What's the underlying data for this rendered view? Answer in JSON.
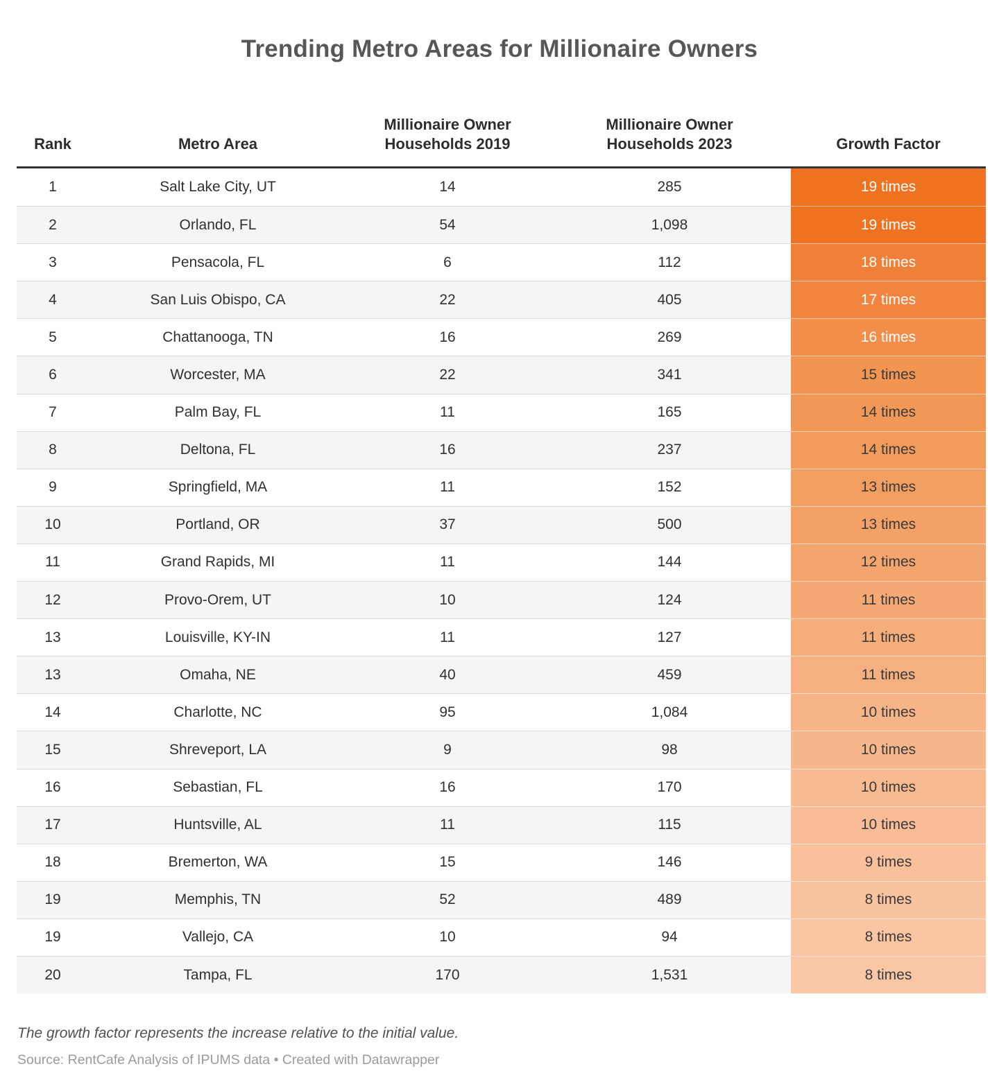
{
  "title": "Trending Metro Areas for Millionaire Owners",
  "table": {
    "headers": [
      "Rank",
      "Metro Area",
      "Millionaire Owner\nHouseholds 2019",
      "Millionaire Owner\nHouseholds 2023",
      "Growth Factor"
    ]
  },
  "chart_data": {
    "type": "table",
    "title": "Trending Metro Areas for Millionaire Owners",
    "columns": [
      "Rank",
      "Metro Area",
      "Millionaire Owner Households 2019",
      "Millionaire Owner Households 2023",
      "Growth Factor"
    ],
    "rows": [
      {
        "rank": "1",
        "metro": "Salt Lake City, UT",
        "hh2019": "14",
        "hh2023": "285",
        "growth_factor": 19,
        "growth": "19 times",
        "growth_bg": "#ee7220",
        "growth_fg": "#ffffff"
      },
      {
        "rank": "2",
        "metro": "Orlando, FL",
        "hh2019": "54",
        "hh2023": "1,098",
        "growth_factor": 19,
        "growth": "19 times",
        "growth_bg": "#ee7220",
        "growth_fg": "#ffffff"
      },
      {
        "rank": "3",
        "metro": "Pensacola, FL",
        "hh2019": "6",
        "hh2023": "112",
        "growth_factor": 18,
        "growth": "18 times",
        "growth_bg": "#f07f38",
        "growth_fg": "#ffffff"
      },
      {
        "rank": "4",
        "metro": "San Luis Obispo, CA",
        "hh2019": "22",
        "hh2023": "405",
        "growth_factor": 17,
        "growth": "17 times",
        "growth_bg": "#f1853f",
        "growth_fg": "#ffffff"
      },
      {
        "rank": "5",
        "metro": "Chattanooga, TN",
        "hh2019": "16",
        "hh2023": "269",
        "growth_factor": 16,
        "growth": "16 times",
        "growth_bg": "#f28e49",
        "growth_fg": "#ffffff"
      },
      {
        "rank": "6",
        "metro": "Worcester, MA",
        "hh2019": "22",
        "hh2023": "341",
        "growth_factor": 15,
        "growth": "15 times",
        "growth_bg": "#f29551",
        "growth_fg": "#3a3a3a"
      },
      {
        "rank": "7",
        "metro": "Palm Bay, FL",
        "hh2019": "11",
        "hh2023": "165",
        "growth_factor": 14,
        "growth": "14 times",
        "growth_bg": "#f29856",
        "growth_fg": "#3a3a3a"
      },
      {
        "rank": "8",
        "metro": "Deltona, FL",
        "hh2019": "16",
        "hh2023": "237",
        "growth_factor": 14,
        "growth": "14 times",
        "growth_bg": "#f39b5b",
        "growth_fg": "#3a3a3a"
      },
      {
        "rank": "9",
        "metro": "Springfield, MA",
        "hh2019": "11",
        "hh2023": "152",
        "growth_factor": 13,
        "growth": "13 times",
        "growth_bg": "#f39e61",
        "growth_fg": "#3a3a3a"
      },
      {
        "rank": "10",
        "metro": "Portland, OR",
        "hh2019": "37",
        "hh2023": "500",
        "growth_factor": 13,
        "growth": "13 times",
        "growth_bg": "#f4a167",
        "growth_fg": "#3a3a3a"
      },
      {
        "rank": "11",
        "metro": "Grand Rapids, MI",
        "hh2019": "11",
        "hh2023": "144",
        "growth_factor": 12,
        "growth": "12 times",
        "growth_bg": "#f4a56d",
        "growth_fg": "#3a3a3a"
      },
      {
        "rank": "12",
        "metro": "Provo-Orem, UT",
        "hh2019": "10",
        "hh2023": "124",
        "growth_factor": 11,
        "growth": "11 times",
        "growth_bg": "#f5a974",
        "growth_fg": "#3a3a3a"
      },
      {
        "rank": "13",
        "metro": "Louisville, KY-IN",
        "hh2019": "11",
        "hh2023": "127",
        "growth_factor": 11,
        "growth": "11 times",
        "growth_bg": "#f5ad7a",
        "growth_fg": "#3a3a3a"
      },
      {
        "rank": "13",
        "metro": "Omaha, NE",
        "hh2019": "40",
        "hh2023": "459",
        "growth_factor": 11,
        "growth": "11 times",
        "growth_bg": "#f6b080",
        "growth_fg": "#3a3a3a"
      },
      {
        "rank": "14",
        "metro": "Charlotte, NC",
        "hh2019": "95",
        "hh2023": "1,084",
        "growth_factor": 10,
        "growth": "10 times",
        "growth_bg": "#f6b487",
        "growth_fg": "#3a3a3a"
      },
      {
        "rank": "15",
        "metro": "Shreveport, LA",
        "hh2019": "9",
        "hh2023": "98",
        "growth_factor": 10,
        "growth": "10 times",
        "growth_bg": "#f7b78c",
        "growth_fg": "#3a3a3a"
      },
      {
        "rank": "16",
        "metro": "Sebastian, FL",
        "hh2019": "16",
        "hh2023": "170",
        "growth_factor": 10,
        "growth": "10 times",
        "growth_bg": "#f7ba91",
        "growth_fg": "#3a3a3a"
      },
      {
        "rank": "17",
        "metro": "Huntsville, AL",
        "hh2019": "11",
        "hh2023": "115",
        "growth_factor": 10,
        "growth": "10 times",
        "growth_bg": "#f8bd96",
        "growth_fg": "#3a3a3a"
      },
      {
        "rank": "18",
        "metro": "Bremerton, WA",
        "hh2019": "15",
        "hh2023": "146",
        "growth_factor": 9,
        "growth": "9 times",
        "growth_bg": "#f8c09b",
        "growth_fg": "#3a3a3a"
      },
      {
        "rank": "19",
        "metro": "Memphis, TN",
        "hh2019": "52",
        "hh2023": "489",
        "growth_factor": 8,
        "growth": "8 times",
        "growth_bg": "#f9c3a0",
        "growth_fg": "#3a3a3a"
      },
      {
        "rank": "19",
        "metro": "Vallejo, CA",
        "hh2019": "10",
        "hh2023": "94",
        "growth_factor": 8,
        "growth": "8 times",
        "growth_bg": "#f9c5a3",
        "growth_fg": "#3a3a3a"
      },
      {
        "rank": "20",
        "metro": "Tampa, FL",
        "hh2019": "170",
        "hh2023": "1,531",
        "growth_factor": 8,
        "growth": "8 times",
        "growth_bg": "#f9c7a6",
        "growth_fg": "#3a3a3a"
      }
    ]
  },
  "footnote": "The growth factor represents the increase relative to the initial value.",
  "source": "Source: RentCafe Analysis of IPUMS data • Created with Datawrapper",
  "colors": {
    "accent_max": "#ee7220",
    "accent_min": "#f9c7a6",
    "stripe": "#f5f5f5",
    "grid_line": "#dcdcdc",
    "header_rule": "#333333",
    "title_text": "#57575a",
    "body_text": "#303030",
    "footnote_text": "#4f4f4f",
    "source_text": "#9b9b9b"
  }
}
